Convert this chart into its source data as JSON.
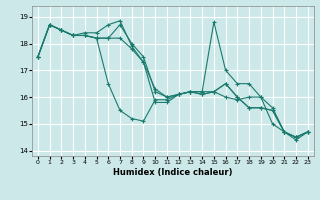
{
  "xlabel": "Humidex (Indice chaleur)",
  "background_color": "#cce8e8",
  "grid_color": "#ffffff",
  "line_color": "#1a7a6e",
  "xlim": [
    -0.5,
    23.5
  ],
  "ylim": [
    13.8,
    19.4
  ],
  "yticks": [
    14,
    15,
    16,
    17,
    18,
    19
  ],
  "xticks": [
    0,
    1,
    2,
    3,
    4,
    5,
    6,
    7,
    8,
    9,
    10,
    11,
    12,
    13,
    14,
    15,
    16,
    17,
    18,
    19,
    20,
    21,
    22,
    23
  ],
  "series": [
    [
      17.5,
      18.7,
      18.5,
      18.3,
      18.4,
      18.4,
      18.7,
      18.85,
      17.9,
      17.3,
      15.8,
      15.8,
      16.1,
      16.2,
      16.2,
      18.8,
      17.0,
      16.5,
      16.5,
      16.0,
      15.6,
      14.7,
      14.5,
      14.7
    ],
    [
      17.5,
      18.7,
      18.5,
      18.3,
      18.3,
      18.2,
      16.5,
      15.5,
      15.2,
      15.1,
      15.9,
      15.9,
      16.1,
      16.2,
      16.2,
      16.2,
      16.0,
      15.9,
      16.0,
      16.0,
      15.0,
      14.7,
      14.4,
      14.7
    ],
    [
      17.5,
      18.7,
      18.5,
      18.3,
      18.3,
      18.2,
      18.2,
      18.7,
      18.0,
      17.5,
      16.2,
      16.0,
      16.1,
      16.2,
      16.1,
      16.2,
      16.5,
      16.0,
      15.6,
      15.6,
      15.5,
      14.7,
      14.5,
      14.7
    ],
    [
      17.5,
      18.7,
      18.5,
      18.3,
      18.3,
      18.2,
      18.2,
      18.2,
      17.8,
      17.3,
      16.3,
      16.0,
      16.1,
      16.2,
      16.1,
      16.2,
      16.5,
      16.0,
      15.6,
      15.6,
      15.5,
      14.7,
      14.5,
      14.7
    ]
  ]
}
